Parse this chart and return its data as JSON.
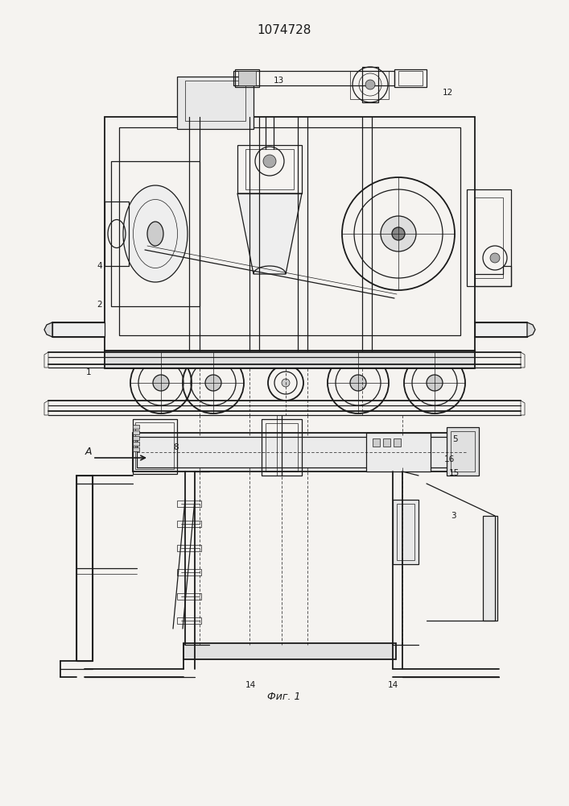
{
  "title": "1074728",
  "fig_caption": "Фиг. 1",
  "bg_color": "#f5f3f0",
  "line_color": "#1a1a1a",
  "lw_thin": 0.5,
  "lw_med": 0.9,
  "lw_thick": 1.3,
  "label_fontsize": 7.5,
  "title_fontsize": 11,
  "caption_fontsize": 9
}
